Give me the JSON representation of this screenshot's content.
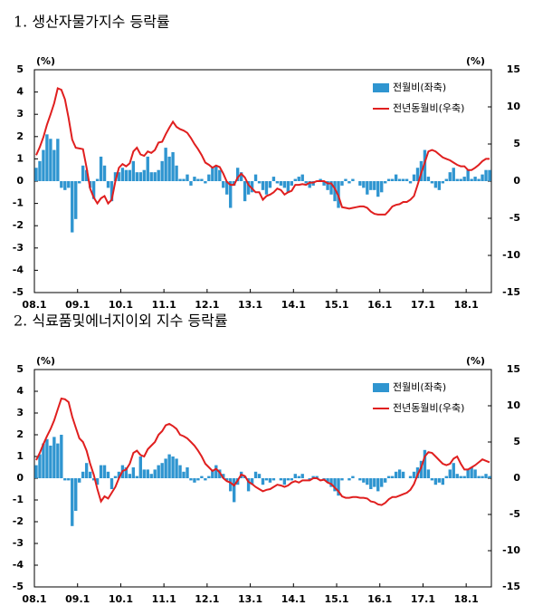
{
  "chart_data": [
    {
      "type": "bar_line",
      "title": "1. 생산자물가지수 등락률",
      "ylabel": "(%)",
      "y2label": "(%)",
      "legend": "upper right",
      "categories": [
        "08.1",
        null,
        null,
        null,
        null,
        null,
        null,
        null,
        null,
        null,
        null,
        null,
        "09.1",
        null,
        null,
        null,
        null,
        null,
        null,
        null,
        null,
        null,
        null,
        null,
        "10.1",
        null,
        null,
        null,
        null,
        null,
        null,
        null,
        null,
        null,
        null,
        null,
        "11.1",
        null,
        null,
        null,
        null,
        null,
        null,
        null,
        null,
        null,
        null,
        null,
        "12.1",
        null,
        null,
        null,
        null,
        null,
        null,
        null,
        null,
        null,
        null,
        null,
        "13.1",
        null,
        null,
        null,
        null,
        null,
        null,
        null,
        null,
        null,
        null,
        null,
        "14.1",
        null,
        null,
        null,
        null,
        null,
        null,
        null,
        null,
        null,
        null,
        null,
        "15.1",
        null,
        null,
        null,
        null,
        null,
        null,
        null,
        null,
        null,
        null,
        null,
        "16.1",
        null,
        null,
        null,
        null,
        null,
        null,
        null,
        null,
        null,
        null,
        null,
        "17.1",
        null,
        null,
        null,
        null,
        null,
        null,
        null,
        null,
        null,
        null,
        null,
        "18.1",
        null,
        null,
        null,
        null,
        null,
        null
      ],
      "ylim": [
        -5,
        5
      ],
      "yticks": [
        -5,
        -4,
        -3,
        -2,
        -1,
        0,
        1,
        2,
        3,
        4,
        5
      ],
      "y2lim": [
        -15,
        15
      ],
      "y2ticks": [
        -15,
        -10,
        -5,
        0,
        5,
        10,
        15
      ],
      "series": [
        {
          "name": "전월비(좌축)",
          "color": "#2f95d0",
          "values": [
            0.6,
            0.9,
            1.4,
            2.1,
            1.9,
            1.4,
            1.9,
            -0.3,
            -0.4,
            -0.3,
            -2.3,
            -1.7,
            -0.1,
            0.7,
            0.5,
            -0.3,
            -0.8,
            0.1,
            1.1,
            0.7,
            -0.3,
            -0.9,
            0.4,
            0.4,
            0.6,
            0.5,
            0.5,
            0.9,
            0.4,
            0.4,
            0.5,
            1.1,
            0.4,
            0.4,
            0.5,
            0.9,
            1.5,
            1.1,
            1.3,
            0.7,
            0.1,
            0.1,
            0.3,
            -0.2,
            0.2,
            0.1,
            0.1,
            -0.1,
            0.3,
            0.6,
            0.7,
            0.5,
            -0.3,
            -0.6,
            -1.2,
            -0.2,
            0.6,
            0.4,
            -0.9,
            -0.6,
            -0.5,
            0.3,
            -0.1,
            -0.4,
            -0.6,
            -0.3,
            0.2,
            -0.1,
            -0.2,
            -0.3,
            -0.5,
            -0.2,
            0.1,
            0.2,
            0.3,
            -0.1,
            -0.3,
            -0.2,
            0.0,
            0.1,
            -0.2,
            -0.4,
            -0.6,
            -0.9,
            -1.2,
            -0.2,
            0.1,
            -0.1,
            0.1,
            0.0,
            -0.2,
            -0.3,
            -0.6,
            -0.4,
            -0.4,
            -0.7,
            -0.5,
            -0.1,
            0.1,
            0.1,
            0.3,
            0.1,
            0.1,
            0.1,
            -0.1,
            0.3,
            0.6,
            0.9,
            1.4,
            0.2,
            -0.1,
            -0.3,
            -0.4,
            -0.1,
            0.1,
            0.4,
            0.6,
            0.1,
            0.1,
            0.2,
            0.5,
            0.1,
            0.2,
            0.1,
            0.3,
            0.5,
            0.5
          ]
        },
        {
          "name": "전년동월비(우축)",
          "color": "#e01f1f",
          "axis": "y2",
          "values": [
            3.5,
            4.6,
            5.9,
            7.6,
            9.0,
            10.5,
            12.5,
            12.3,
            11.0,
            8.5,
            5.6,
            4.5,
            4.4,
            4.3,
            1.8,
            -1.0,
            -2.2,
            -3.0,
            -2.3,
            -2.0,
            -3.0,
            -2.5,
            0.0,
            1.8,
            2.3,
            2.0,
            2.4,
            4.0,
            4.5,
            3.6,
            3.4,
            4.0,
            3.8,
            4.2,
            5.2,
            5.3,
            6.3,
            7.2,
            8.0,
            7.3,
            7.0,
            6.8,
            6.5,
            5.8,
            5.0,
            4.3,
            3.5,
            2.5,
            2.2,
            1.8,
            2.1,
            1.9,
            1.0,
            -0.1,
            -0.5,
            -0.5,
            0.5,
            1.0,
            0.5,
            -0.5,
            -1.0,
            -1.5,
            -1.5,
            -2.5,
            -2.0,
            -1.8,
            -1.5,
            -1.0,
            -1.2,
            -1.8,
            -1.5,
            -1.3,
            -0.5,
            -0.5,
            -0.4,
            -0.5,
            -0.2,
            -0.2,
            0.0,
            0.0,
            0.0,
            -0.3,
            -0.3,
            -1.0,
            -2.0,
            -3.5,
            -3.6,
            -3.7,
            -3.6,
            -3.5,
            -3.4,
            -3.4,
            -3.6,
            -4.1,
            -4.4,
            -4.5,
            -4.5,
            -4.5,
            -4.0,
            -3.4,
            -3.2,
            -3.1,
            -2.8,
            -2.8,
            -2.5,
            -2.0,
            -0.5,
            1.1,
            2.5,
            4.0,
            4.2,
            4.0,
            3.6,
            3.2,
            3.0,
            2.8,
            2.5,
            2.2,
            2.0,
            2.0,
            1.5,
            1.5,
            1.8,
            2.2,
            2.7,
            3.0,
            3.0
          ]
        }
      ]
    },
    {
      "type": "bar_line",
      "title": "2. 식료품및에너지이외 지수 등락률",
      "ylabel": "(%)",
      "y2label": "(%)",
      "legend": "upper right",
      "categories": [
        "08.1",
        null,
        null,
        null,
        null,
        null,
        null,
        null,
        null,
        null,
        null,
        null,
        "09.1",
        null,
        null,
        null,
        null,
        null,
        null,
        null,
        null,
        null,
        null,
        null,
        "10.1",
        null,
        null,
        null,
        null,
        null,
        null,
        null,
        null,
        null,
        null,
        null,
        "11.1",
        null,
        null,
        null,
        null,
        null,
        null,
        null,
        null,
        null,
        null,
        null,
        "12.1",
        null,
        null,
        null,
        null,
        null,
        null,
        null,
        null,
        null,
        null,
        null,
        "13.1",
        null,
        null,
        null,
        null,
        null,
        null,
        null,
        null,
        null,
        null,
        null,
        "14.1",
        null,
        null,
        null,
        null,
        null,
        null,
        null,
        null,
        null,
        null,
        null,
        "15.1",
        null,
        null,
        null,
        null,
        null,
        null,
        null,
        null,
        null,
        null,
        null,
        "16.1",
        null,
        null,
        null,
        null,
        null,
        null,
        null,
        null,
        null,
        null,
        null,
        "17.1",
        null,
        null,
        null,
        null,
        null,
        null,
        null,
        null,
        null,
        null,
        null,
        "18.1",
        null,
        null,
        null,
        null,
        null,
        null
      ],
      "ylim": [
        -5,
        5
      ],
      "yticks": [
        -5,
        -4,
        -3,
        -2,
        -1,
        0,
        1,
        2,
        3,
        4,
        5
      ],
      "y2lim": [
        -15,
        15
      ],
      "y2ticks": [
        -15,
        -10,
        -5,
        0,
        5,
        10,
        15
      ],
      "series": [
        {
          "name": "전월비(좌축)",
          "color": "#2f95d0",
          "values": [
            0.6,
            1.1,
            1.6,
            1.8,
            1.5,
            1.9,
            1.6,
            2.0,
            -0.1,
            -0.1,
            -2.2,
            -1.5,
            -0.2,
            0.3,
            0.7,
            0.3,
            -0.1,
            -0.3,
            0.6,
            0.6,
            0.3,
            -0.5,
            0.1,
            0.3,
            0.6,
            0.5,
            0.2,
            0.5,
            0.1,
            1.0,
            0.4,
            0.4,
            0.2,
            0.4,
            0.6,
            0.7,
            0.9,
            1.1,
            1.0,
            0.9,
            0.6,
            0.3,
            0.5,
            -0.1,
            -0.2,
            -0.1,
            0.1,
            -0.1,
            0.1,
            0.4,
            0.6,
            0.4,
            0.2,
            -0.1,
            -0.6,
            -1.1,
            -0.3,
            0.3,
            0.1,
            -0.6,
            -0.3,
            0.3,
            0.2,
            -0.3,
            -0.1,
            -0.2,
            -0.1,
            0.0,
            -0.1,
            -0.3,
            -0.1,
            -0.1,
            0.2,
            0.1,
            0.2,
            0.0,
            -0.1,
            0.1,
            0.1,
            0.0,
            -0.1,
            -0.2,
            -0.4,
            -0.6,
            -0.8,
            -0.1,
            0.0,
            -0.1,
            0.1,
            0.0,
            -0.1,
            -0.2,
            -0.3,
            -0.5,
            -0.4,
            -0.6,
            -0.4,
            -0.2,
            0.1,
            0.1,
            0.3,
            0.4,
            0.3,
            0.0,
            0.1,
            0.3,
            0.5,
            0.8,
            1.3,
            0.4,
            -0.1,
            -0.3,
            -0.2,
            -0.3,
            0.1,
            0.4,
            0.7,
            0.2,
            0.1,
            0.1,
            0.4,
            0.5,
            0.4,
            0.1,
            0.1,
            0.2,
            0.1
          ]
        },
        {
          "name": "전년동월비(우축)",
          "color": "#e01f1f",
          "axis": "y2",
          "values": [
            2.5,
            3.5,
            4.7,
            5.8,
            6.8,
            8.0,
            9.5,
            11.0,
            10.9,
            10.5,
            8.5,
            7.0,
            5.5,
            5.0,
            3.8,
            2.0,
            0.5,
            -1.5,
            -3.2,
            -2.5,
            -2.8,
            -2.0,
            -1.2,
            0.0,
            1.0,
            1.2,
            2.0,
            3.5,
            3.8,
            3.2,
            3.0,
            4.0,
            4.5,
            5.0,
            6.0,
            6.5,
            7.3,
            7.5,
            7.2,
            6.8,
            6.0,
            5.8,
            5.5,
            5.0,
            4.5,
            3.8,
            3.0,
            2.0,
            1.5,
            1.0,
            1.3,
            0.8,
            0.0,
            -0.4,
            -0.6,
            -1.0,
            -0.3,
            0.5,
            0.3,
            -0.5,
            -0.8,
            -1.2,
            -1.5,
            -1.8,
            -1.6,
            -1.5,
            -1.2,
            -0.9,
            -1.0,
            -1.2,
            -1.0,
            -0.6,
            -0.4,
            -0.6,
            -0.3,
            -0.3,
            -0.3,
            0.0,
            0.0,
            -0.3,
            -0.2,
            -0.6,
            -0.8,
            -1.3,
            -1.8,
            -2.5,
            -2.7,
            -2.7,
            -2.6,
            -2.6,
            -2.7,
            -2.7,
            -2.8,
            -3.2,
            -3.3,
            -3.6,
            -3.7,
            -3.4,
            -2.9,
            -2.6,
            -2.6,
            -2.4,
            -2.2,
            -2.0,
            -1.6,
            -0.8,
            0.5,
            1.5,
            3.0,
            3.6,
            3.5,
            3.0,
            2.5,
            2.0,
            1.8,
            2.0,
            2.7,
            3.0,
            2.0,
            1.2,
            1.2,
            1.5,
            1.8,
            2.2,
            2.6,
            2.4,
            2.2
          ]
        }
      ]
    }
  ]
}
